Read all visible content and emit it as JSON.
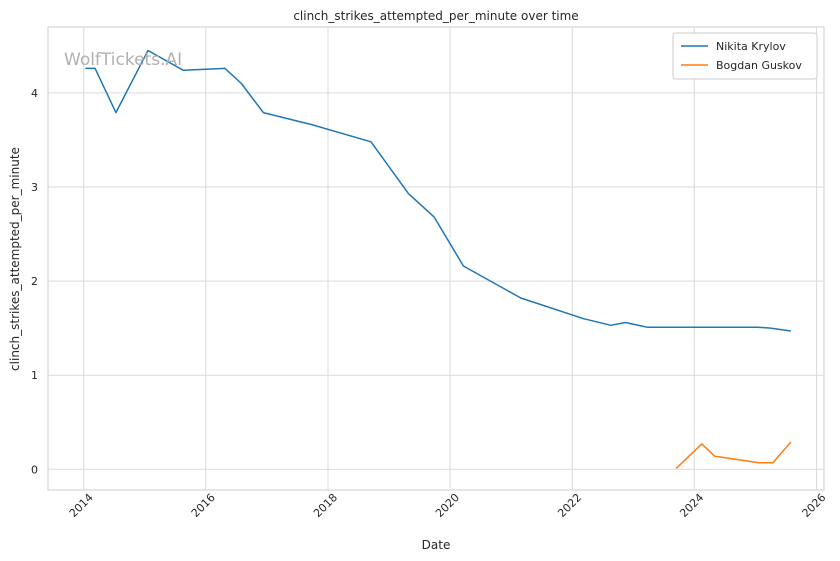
{
  "chart_data": {
    "type": "line",
    "title": "clinch_strikes_attempted_per_minute over time",
    "xlabel": "Date",
    "ylabel": "clinch_strikes_attempted_per_minute",
    "watermark": "WolfTickets.AI",
    "x_ticks": [
      "2014",
      "2016",
      "2018",
      "2020",
      "2022",
      "2024",
      "2026"
    ],
    "y_ticks": [
      "0",
      "1",
      "2",
      "3",
      "4"
    ],
    "xlim": [
      "2013-06-01",
      "2026-02-15"
    ],
    "ylim": [
      -0.22,
      4.7
    ],
    "grid": true,
    "legend_position": "top-right",
    "series": [
      {
        "name": "Nikita Krylov",
        "color": "#1f77b4",
        "points": [
          [
            "2014-01-10",
            4.26
          ],
          [
            "2014-03-10",
            4.26
          ],
          [
            "2014-07-12",
            3.79
          ],
          [
            "2015-01-20",
            4.45
          ],
          [
            "2015-08-20",
            4.24
          ],
          [
            "2016-04-25",
            4.26
          ],
          [
            "2016-08-01",
            4.1
          ],
          [
            "2016-12-10",
            3.79
          ],
          [
            "2017-10-01",
            3.66
          ],
          [
            "2018-09-15",
            3.48
          ],
          [
            "2019-04-27",
            2.93
          ],
          [
            "2019-09-28",
            2.68
          ],
          [
            "2020-03-21",
            2.16
          ],
          [
            "2021-02-27",
            1.82
          ],
          [
            "2022-03-10",
            1.6
          ],
          [
            "2022-08-20",
            1.53
          ],
          [
            "2022-11-15",
            1.56
          ],
          [
            "2023-03-25",
            1.51
          ],
          [
            "2025-01-15",
            1.51
          ],
          [
            "2025-04-01",
            1.5
          ],
          [
            "2025-08-01",
            1.47
          ]
        ]
      },
      {
        "name": "Bogdan Guskov",
        "color": "#ff7f0e",
        "points": [
          [
            "2023-09-15",
            0.01
          ],
          [
            "2024-02-15",
            0.27
          ],
          [
            "2024-05-01",
            0.14
          ],
          [
            "2025-01-20",
            0.07
          ],
          [
            "2025-04-15",
            0.07
          ],
          [
            "2025-08-01",
            0.29
          ]
        ]
      }
    ]
  }
}
